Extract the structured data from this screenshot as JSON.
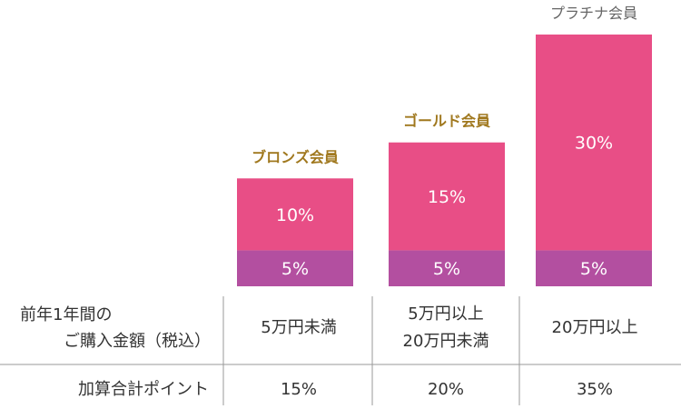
{
  "chart_data": {
    "type": "bar",
    "stacked": true,
    "categories": [
      "ブロンズ会員",
      "ゴールド会員",
      "プラチナ会員"
    ],
    "category_colors": [
      "#a0781e",
      "#a0781e",
      "#666666"
    ],
    "series": [
      {
        "values": [
          5,
          5,
          5
        ],
        "color": "#b34fa0",
        "labels": [
          "5%",
          "5%",
          "5%"
        ]
      },
      {
        "values": [
          10,
          15,
          30
        ],
        "color": "#e84e86",
        "labels": [
          "10%",
          "15%",
          "30%"
        ]
      }
    ],
    "ylim": [
      0,
      35
    ],
    "grid": false
  },
  "table": {
    "rows": [
      {
        "header": [
          "前年1年間の",
          "ご購入金額（税込）"
        ],
        "cells": [
          [
            "5万円未満"
          ],
          [
            "5万円以上",
            "20万円未満"
          ],
          [
            "20万円以上"
          ]
        ]
      },
      {
        "header": [
          "加算合計ポイント"
        ],
        "cells": [
          [
            "15%"
          ],
          [
            "20%"
          ],
          [
            "35%"
          ]
        ]
      }
    ]
  }
}
